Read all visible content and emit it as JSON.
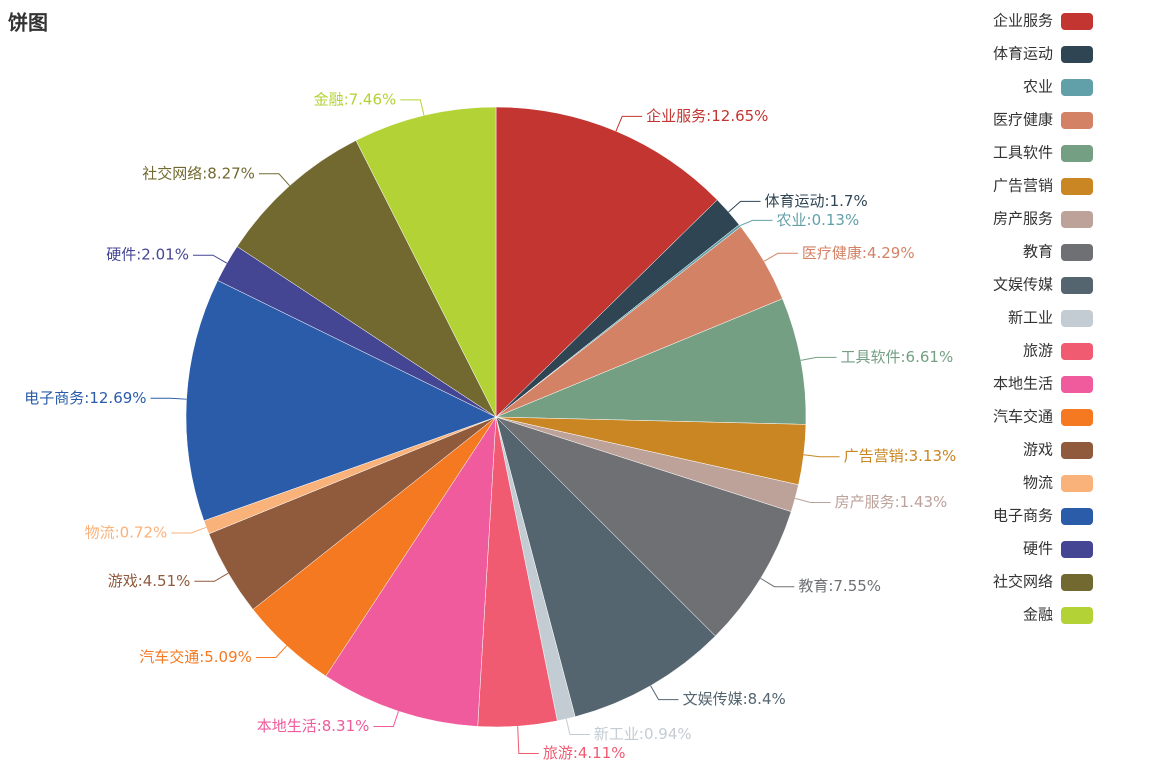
{
  "chart_data": {
    "type": "pie",
    "title": "饼图",
    "categories": [
      "企业服务",
      "体育运动",
      "农业",
      "医疗健康",
      "工具软件",
      "广告营销",
      "房产服务",
      "教育",
      "文娱传媒",
      "新工业",
      "旅游",
      "本地生活",
      "汽车交通",
      "游戏",
      "物流",
      "电子商务",
      "硬件",
      "社交网络",
      "金融"
    ],
    "values": [
      12.65,
      1.7,
      0.13,
      4.29,
      6.61,
      3.13,
      1.43,
      7.55,
      8.4,
      0.94,
      4.11,
      8.31,
      5.09,
      4.51,
      0.72,
      12.69,
      2.01,
      8.27,
      7.46
    ],
    "value_labels": [
      "企业服务:12.65%",
      "体育运动:1.7%",
      "农业:0.13%",
      "医疗健康:4.29%",
      "工具软件:6.61%",
      "广告营销:3.13%",
      "房产服务:1.43%",
      "教育:7.55%",
      "文娱传媒:8.4%",
      "新工业:0.94%",
      "旅游:4.11%",
      "本地生活:8.31%",
      "汽车交通:5.09%",
      "游戏:4.51%",
      "物流:0.72%",
      "电子商务:12.69%",
      "硬件:2.01%",
      "社交网络:8.27%",
      "金融:7.46%"
    ],
    "colors": [
      "#c23531",
      "#2f4554",
      "#61a0a8",
      "#d48265",
      "#749f83",
      "#ca8622",
      "#bda29a",
      "#6e7074",
      "#546570",
      "#c4ccd3",
      "#f05b72",
      "#ef5b9c",
      "#f47920",
      "#905a3d",
      "#fab27b",
      "#2a5caa",
      "#444693",
      "#726930",
      "#b2d235"
    ],
    "legend": "right"
  }
}
